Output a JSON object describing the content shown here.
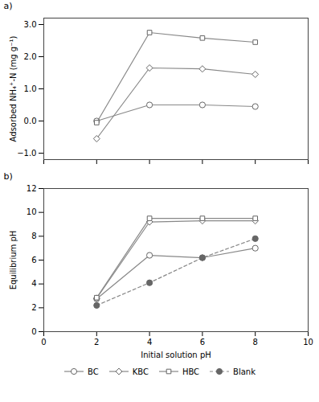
{
  "chart_data": [
    {
      "type": "line",
      "title": "a)",
      "ylabel": "Adsorbed NH₄⁺-N (mg g⁻¹)",
      "x": [
        2,
        4,
        6,
        8
      ],
      "xlim": [
        0,
        10
      ],
      "xticks": [
        0,
        2,
        4,
        6,
        8,
        10
      ],
      "ylim": [
        -1.2,
        3.2
      ],
      "yticks": [
        -1,
        0,
        1,
        2,
        3
      ],
      "color": "#888888",
      "tick_labels": "y",
      "series": [
        {
          "name": "BC",
          "marker": "circle",
          "line_style": "solid",
          "values": [
            0.0,
            0.5,
            0.5,
            0.45
          ],
          "yerr": [
            0.05,
            0.05,
            0.05,
            0.05
          ]
        },
        {
          "name": "KBC",
          "marker": "diamond",
          "line_style": "solid",
          "values": [
            -0.55,
            1.65,
            1.62,
            1.45
          ],
          "yerr": [
            0.05,
            0.07,
            0.07,
            0.05
          ]
        },
        {
          "name": "HBC",
          "marker": "square",
          "line_style": "solid",
          "values": [
            -0.05,
            2.75,
            2.58,
            2.45
          ],
          "yerr": [
            0.05,
            0.07,
            0.05,
            0.05
          ]
        }
      ]
    },
    {
      "type": "line",
      "title": "b)",
      "xlabel": "Initial solution pH",
      "ylabel": "Equilibrium pH",
      "x": [
        2,
        4,
        6,
        8
      ],
      "xlim": [
        0,
        10
      ],
      "xticks": [
        0,
        2,
        4,
        6,
        8,
        10
      ],
      "ylim": [
        0,
        12
      ],
      "yticks": [
        0,
        2,
        4,
        6,
        8,
        10,
        12
      ],
      "color": "#888888",
      "legend": "bottom",
      "series": [
        {
          "name": "BC",
          "marker": "circle",
          "line_style": "solid",
          "values": [
            2.75,
            6.4,
            6.2,
            7.0
          ]
        },
        {
          "name": "KBC",
          "marker": "diamond",
          "line_style": "solid",
          "values": [
            2.8,
            9.2,
            9.3,
            9.3
          ]
        },
        {
          "name": "HBC",
          "marker": "square",
          "line_style": "solid",
          "values": [
            2.85,
            9.5,
            9.5,
            9.5
          ]
        },
        {
          "name": "Blank",
          "marker": "disc",
          "line_style": "dashed",
          "values": [
            2.2,
            4.1,
            6.2,
            7.8
          ]
        }
      ]
    }
  ]
}
